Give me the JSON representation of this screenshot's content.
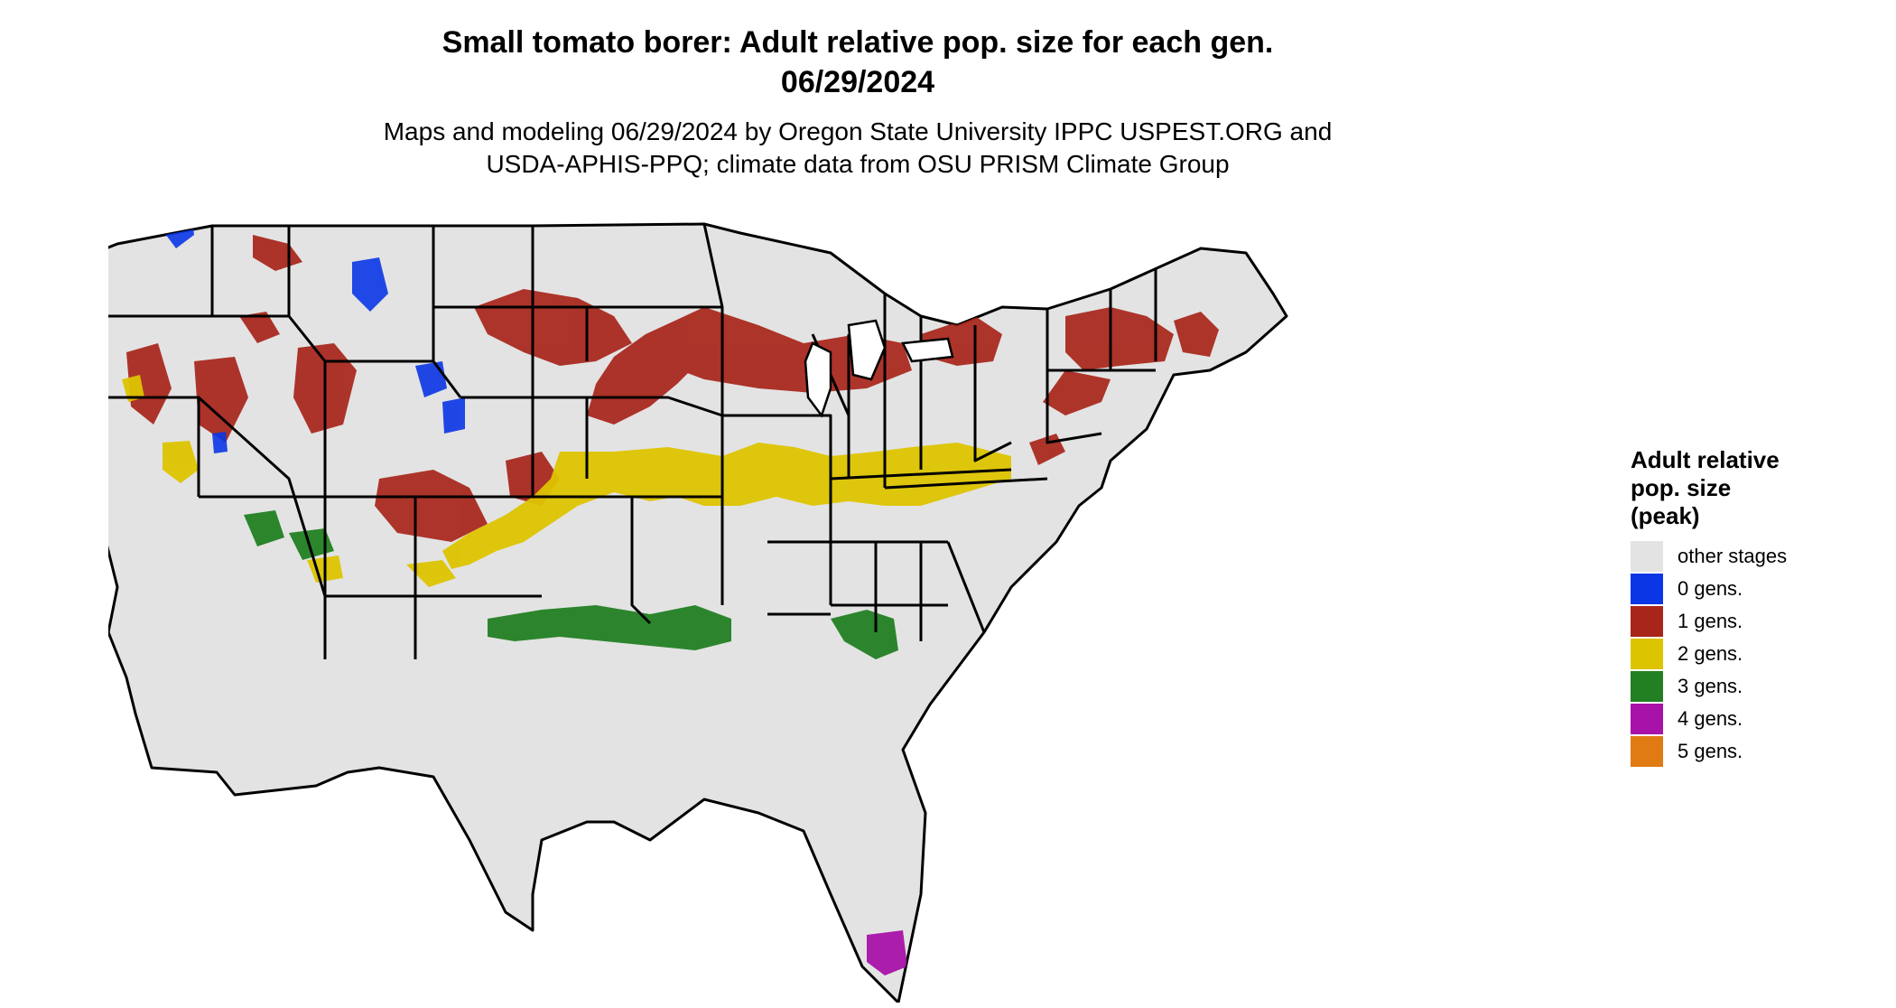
{
  "title": {
    "line1": "Small tomato borer: Adult relative pop. size for each gen.",
    "line2": "06/29/2024"
  },
  "subtitle": {
    "line1": "Maps and modeling 06/29/2024 by Oregon State University IPPC USPEST.ORG and",
    "line2": "USDA-APHIS-PPQ; climate data from OSU PRISM Climate Group"
  },
  "legend": {
    "title_lines": [
      "Adult relative",
      "pop. size",
      "(peak)"
    ],
    "items": [
      {
        "label": "other stages",
        "color": "#e3e3e3"
      },
      {
        "label": "0 gens.",
        "color": "#0a36e6"
      },
      {
        "label": "1 gens.",
        "color": "#a8251a"
      },
      {
        "label": "2 gens.",
        "color": "#ddc400"
      },
      {
        "label": "3 gens.",
        "color": "#228022"
      },
      {
        "label": "4 gens.",
        "color": "#a812a8"
      },
      {
        "label": "5 gens.",
        "color": "#e07a12"
      }
    ]
  },
  "map": {
    "region": "contiguous United States",
    "land_color": "#e3e3e3",
    "border_color": "#000000"
  }
}
